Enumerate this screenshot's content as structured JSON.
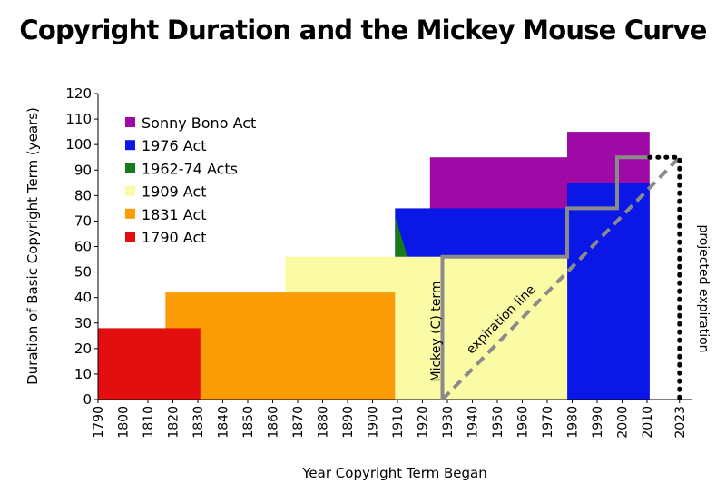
{
  "title": "Copyright Duration and the Mickey Mouse Curve",
  "chart_data": {
    "type": "area",
    "xlabel": "Year Copyright Term Began",
    "ylabel": "Duration of Basic Copyright Term (years)",
    "xlim": [
      1790,
      2023
    ],
    "ylim": [
      0,
      120
    ],
    "x_ticks": [
      1790,
      1800,
      1810,
      1820,
      1830,
      1840,
      1850,
      1860,
      1870,
      1880,
      1890,
      1900,
      1910,
      1920,
      1930,
      1940,
      1950,
      1960,
      1970,
      1980,
      1990,
      2000,
      2010,
      2023
    ],
    "y_ticks": [
      0,
      10,
      20,
      30,
      40,
      50,
      60,
      70,
      80,
      90,
      100,
      110,
      120
    ],
    "grid": false,
    "legend_position": "top-left",
    "series": [
      {
        "name": "Sonny Bono Act",
        "color": "#9e0aa6",
        "regions": [
          {
            "x": [
              1923,
              1978
            ],
            "y": [
              0,
              95
            ]
          },
          {
            "x": [
              1978,
              2011
            ],
            "y": [
              0,
              105
            ]
          }
        ]
      },
      {
        "name": "1976 Act",
        "color": "#0a17e6",
        "regions": [
          {
            "x": [
              1909,
              1978
            ],
            "y": [
              0,
              75
            ]
          },
          {
            "x": [
              1978,
              2011
            ],
            "y": [
              0,
              85
            ]
          }
        ]
      },
      {
        "name": "1962-74 Acts",
        "color": "#167a16",
        "regions": [
          {
            "x": [
              1909,
              1914
            ],
            "y": [
              56,
              72
            ]
          }
        ]
      },
      {
        "name": "1909 Act",
        "color": "#fbfba6",
        "regions": [
          {
            "x": [
              1865,
              1978
            ],
            "y": [
              0,
              56
            ]
          }
        ]
      },
      {
        "name": "1831 Act",
        "color": "#fa9c05",
        "regions": [
          {
            "x": [
              1817,
              1909
            ],
            "y": [
              0,
              42
            ]
          }
        ]
      },
      {
        "name": "1790 Act",
        "color": "#e30f0f",
        "regions": [
          {
            "x": [
              1790,
              1831
            ],
            "y": [
              0,
              28
            ]
          }
        ]
      }
    ],
    "mickey_term": {
      "label": "Mickey (C) term",
      "color": "#8a8a8a",
      "points": [
        [
          1928,
          0
        ],
        [
          1928,
          56
        ],
        [
          1978,
          56
        ],
        [
          1978,
          75
        ],
        [
          1998,
          75
        ],
        [
          1998,
          95
        ],
        [
          2011,
          95
        ]
      ]
    },
    "expiration_line": {
      "label": "expiration line",
      "color": "#8a8a8a",
      "points": [
        [
          1928,
          0
        ],
        [
          2023,
          95
        ]
      ]
    },
    "projected_expiration": {
      "label": "projected expiration",
      "points": [
        [
          2011,
          95
        ],
        [
          2023,
          95
        ],
        [
          2023,
          0
        ]
      ]
    }
  }
}
